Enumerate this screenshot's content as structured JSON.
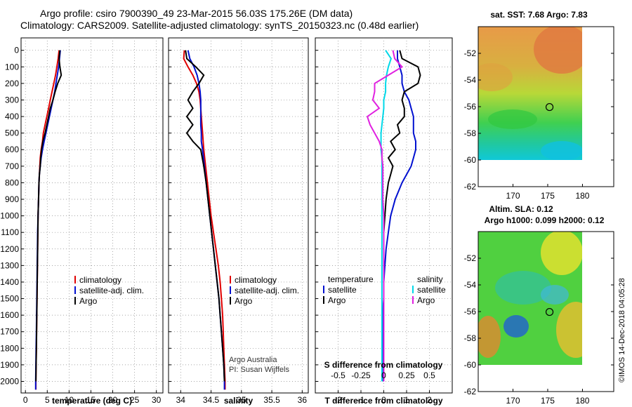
{
  "title": {
    "line1": "Argo profile: csiro 7900390_49 23-Mar-2015 56.03S 175.26E (DM data)",
    "line2": "Climatology: CARS2009. Satellite-adjusted climatology: synTS_20150323.nc (0.48d earlier)"
  },
  "colors": {
    "climatology": "#e00000",
    "satellite": "#0010d0",
    "argo": "#000000",
    "satellite_s": "#00d8e8",
    "argo_s": "#e020e0"
  },
  "depth_ticks": [
    "0",
    "100",
    "200",
    "300",
    "400",
    "500",
    "600",
    "700",
    "800",
    "900",
    "1000",
    "1100",
    "1200",
    "1300",
    "1400",
    "1500",
    "1600",
    "1700",
    "1800",
    "1900",
    "2000"
  ],
  "chart_data": [
    {
      "type": "line",
      "name": "temperature",
      "xlabel": "temperature (deg C)",
      "ylabel": "depth (dbar)",
      "xlim": [
        -1,
        31.5
      ],
      "ylim": [
        2050,
        0
      ],
      "xticks": [
        "0",
        "5",
        "10",
        "15",
        "20",
        "25",
        "30"
      ],
      "legend": [
        "climatology",
        "satellite-adj. clim.",
        "Argo"
      ],
      "depth": [
        0,
        50,
        100,
        150,
        200,
        250,
        300,
        350,
        400,
        450,
        500,
        550,
        600,
        650,
        700,
        750,
        800,
        900,
        1000,
        1100,
        1200,
        1300,
        1400,
        1500,
        1600,
        1700,
        1800,
        1900,
        2000,
        2050
      ],
      "series": [
        {
          "name": "climatology",
          "values": [
            7.7,
            7.5,
            7.2,
            6.9,
            6.5,
            6.1,
            5.7,
            5.3,
            4.9,
            4.5,
            4.1,
            3.9,
            3.6,
            3.4,
            3.3,
            3.2,
            3.1,
            3.0,
            2.9,
            2.85,
            2.8,
            2.75,
            2.7,
            2.65,
            2.6,
            2.55,
            2.5,
            2.45,
            2.4,
            2.4
          ]
        },
        {
          "name": "satellite-adj. clim.",
          "values": [
            8.0,
            7.8,
            7.6,
            7.3,
            7.0,
            6.7,
            6.3,
            5.9,
            5.5,
            5.1,
            4.7,
            4.3,
            3.9,
            3.6,
            3.4,
            3.2,
            3.1,
            3.0,
            2.9,
            2.8,
            2.75,
            2.7,
            2.65,
            2.6,
            2.55,
            2.5,
            2.45,
            2.4,
            2.35,
            2.35
          ]
        },
        {
          "name": "Argo",
          "values": [
            7.9,
            7.7,
            7.9,
            8.2,
            7.4,
            6.8,
            6.3,
            5.7,
            5.3,
            4.9,
            4.5,
            4.0,
            3.7,
            3.5,
            3.4,
            3.2,
            3.1,
            3.0,
            2.9,
            2.85,
            2.8,
            2.75,
            2.7,
            2.65,
            2.6,
            2.55,
            2.5,
            2.45,
            2.4,
            null
          ]
        }
      ]
    },
    {
      "type": "line",
      "name": "salinity",
      "xlabel": "salinity",
      "ylabel": "depth (dbar)",
      "xlim": [
        33.8,
        36.1
      ],
      "ylim": [
        2050,
        0
      ],
      "xticks": [
        "34",
        "34.5",
        "35",
        "35.5",
        "36"
      ],
      "legend": [
        "climatology",
        "satellite-adj. clim.",
        "Argo"
      ],
      "annotation_line1": "Argo Australia",
      "annotation_line2": "PI: Susan Wijffels",
      "depth": [
        0,
        50,
        100,
        150,
        200,
        250,
        300,
        350,
        400,
        450,
        500,
        550,
        600,
        700,
        800,
        900,
        1000,
        1100,
        1200,
        1300,
        1400,
        1500,
        1600,
        1700,
        1800,
        1900,
        2000,
        2050
      ],
      "series": [
        {
          "name": "climatology",
          "values": [
            34.06,
            34.05,
            34.12,
            34.2,
            34.26,
            34.3,
            34.32,
            34.33,
            34.34,
            34.35,
            34.36,
            34.37,
            34.38,
            34.41,
            34.44,
            34.47,
            34.5,
            34.54,
            34.58,
            34.62,
            34.65,
            34.67,
            34.69,
            34.7,
            34.71,
            34.72,
            34.73,
            34.73
          ]
        },
        {
          "name": "satellite-adj. clim.",
          "values": [
            34.12,
            34.15,
            34.22,
            34.27,
            34.3,
            34.32,
            34.33,
            34.33,
            34.33,
            34.33,
            34.34,
            34.34,
            34.36,
            34.39,
            34.42,
            34.45,
            34.48,
            34.51,
            34.54,
            34.57,
            34.6,
            34.63,
            34.65,
            34.67,
            34.69,
            34.71,
            34.72,
            34.72
          ]
        },
        {
          "name": "Argo",
          "values": [
            34.08,
            34.1,
            34.25,
            34.38,
            34.3,
            34.2,
            34.12,
            34.2,
            34.1,
            34.2,
            34.1,
            34.2,
            34.33,
            34.38,
            34.42,
            34.45,
            34.48,
            34.51,
            34.54,
            34.57,
            34.6,
            34.63,
            34.65,
            34.67,
            34.69,
            34.71,
            34.72,
            null
          ]
        }
      ]
    },
    {
      "type": "line",
      "name": "difference from climatology",
      "xlabel": "T difference from climatology",
      "x2label": "S difference from climatology",
      "ylabel": "depth (dbar)",
      "xlim": [
        -3,
        3
      ],
      "ylim": [
        2050,
        0
      ],
      "xticks": [
        "-2",
        "-1",
        "0",
        "1",
        "2"
      ],
      "x2ticks": [
        "-0.5",
        "-0.25",
        "0",
        "0.25",
        "0.5"
      ],
      "legend_temperature_title": "temperature",
      "legend_salinity_title": "salinity",
      "legend": [
        "satellite",
        "Argo"
      ],
      "depth": [
        0,
        50,
        100,
        150,
        200,
        250,
        300,
        350,
        400,
        450,
        500,
        550,
        600,
        650,
        700,
        750,
        800,
        900,
        1000,
        1100,
        1200,
        1300,
        1400,
        1500,
        1600,
        1700,
        1800,
        1900,
        2000
      ],
      "series": [
        {
          "name": "T satellite",
          "values": [
            0.6,
            0.6,
            0.7,
            0.8,
            0.8,
            0.9,
            1.1,
            1.2,
            1.3,
            1.3,
            1.3,
            1.4,
            1.4,
            1.3,
            1.2,
            1.0,
            0.8,
            0.5,
            0.3,
            0.2,
            0.1,
            0.05,
            0.0,
            0.0,
            -0.05,
            -0.05,
            -0.05,
            -0.05,
            -0.05
          ]
        },
        {
          "name": "T Argo",
          "values": [
            0.7,
            0.8,
            1.5,
            1.6,
            1.5,
            0.9,
            0.8,
            0.9,
            0.9,
            0.6,
            0.7,
            0.3,
            0.5,
            0.2,
            0.4,
            0.3,
            0.2,
            0.1,
            0.05,
            0.0,
            0.0,
            0.0,
            0.0,
            0.0,
            0.0,
            0.0,
            0.0,
            0.0,
            0.0
          ]
        },
        {
          "name": "S satellite",
          "values": [
            0.02,
            0.08,
            0.05,
            0.03,
            0.02,
            0.02,
            0.0,
            0.0,
            -0.01,
            -0.02,
            -0.03,
            -0.03,
            -0.03,
            -0.02,
            -0.02,
            -0.02,
            -0.02,
            -0.02,
            -0.02,
            -0.02,
            -0.02,
            -0.02,
            -0.02,
            -0.02,
            -0.02,
            -0.02,
            -0.02,
            -0.02,
            -0.02
          ]
        },
        {
          "name": "S Argo",
          "values": [
            0.1,
            0.12,
            0.2,
            0.05,
            -0.1,
            -0.1,
            -0.12,
            -0.05,
            -0.18,
            -0.15,
            -0.1,
            -0.05,
            -0.02,
            -0.02,
            -0.01,
            -0.01,
            -0.01,
            -0.01,
            0.0,
            0.0,
            0.0,
            0.0,
            0.0,
            0.0,
            0.0,
            0.0,
            0.0,
            0.0,
            0.0
          ]
        }
      ]
    },
    {
      "type": "heatmap",
      "name": "sat SST",
      "title": "sat. SST: 7.68 Argo: 7.83",
      "xlim": [
        165,
        184.5
      ],
      "ylim": [
        -62,
        -50
      ],
      "xticks": [
        "170",
        "175",
        "180"
      ],
      "yticks": [
        "-52",
        "-54",
        "-56",
        "-58",
        "-60",
        "-62"
      ],
      "marker_lon": 175.26,
      "marker_lat": -56.03
    },
    {
      "type": "heatmap",
      "name": "SLA",
      "title_line1": "Altim. SLA: 0.12",
      "title_line2": "Argo h1000: 0.099 h2000: 0.12",
      "xlim": [
        165,
        184.5
      ],
      "ylim": [
        -62,
        -50
      ],
      "xticks": [
        "170",
        "175",
        "180"
      ],
      "yticks": [
        "-52",
        "-54",
        "-56",
        "-58",
        "-60",
        "-62"
      ],
      "marker_lon": 175.26,
      "marker_lat": -56.03
    }
  ],
  "footer": "©IMOS 14-Dec-2018 04:05:28"
}
